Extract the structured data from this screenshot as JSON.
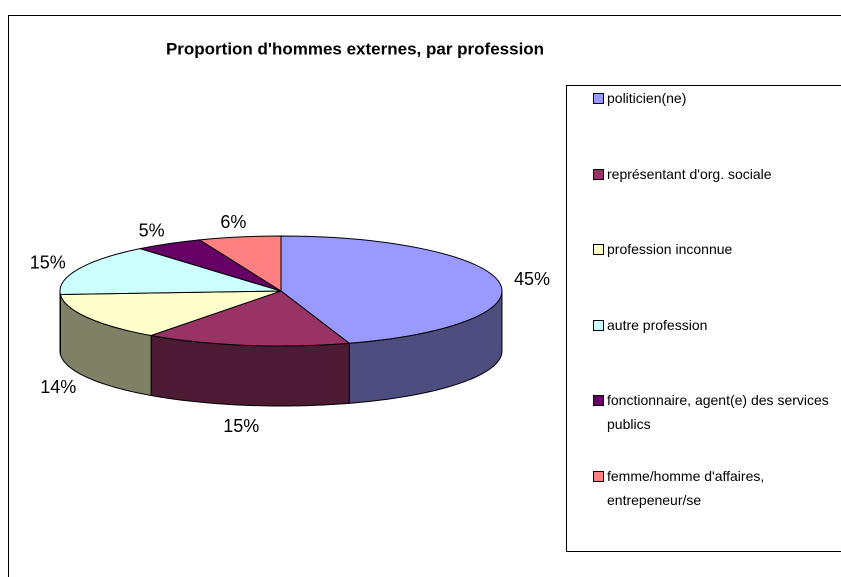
{
  "chart_data": {
    "type": "pie",
    "title": "Proportion d'hommes externes, par profession",
    "categories": [
      "politicien(ne)",
      "représentant d'org. sociale",
      "profession inconnue",
      "autre profession",
      "fonctionnaire, agent(e) des services publics",
      "femme/homme d'affaires, entrepeneur/se"
    ],
    "values": [
      45,
      15,
      14,
      15,
      5,
      6
    ],
    "value_labels": [
      "45%",
      "15%",
      "14%",
      "15%",
      "5%",
      "6%"
    ],
    "colors": [
      "#9999ff",
      "#993366",
      "#ffffcc",
      "#ccffff",
      "#660066",
      "#ff8080"
    ],
    "legend": "right"
  }
}
